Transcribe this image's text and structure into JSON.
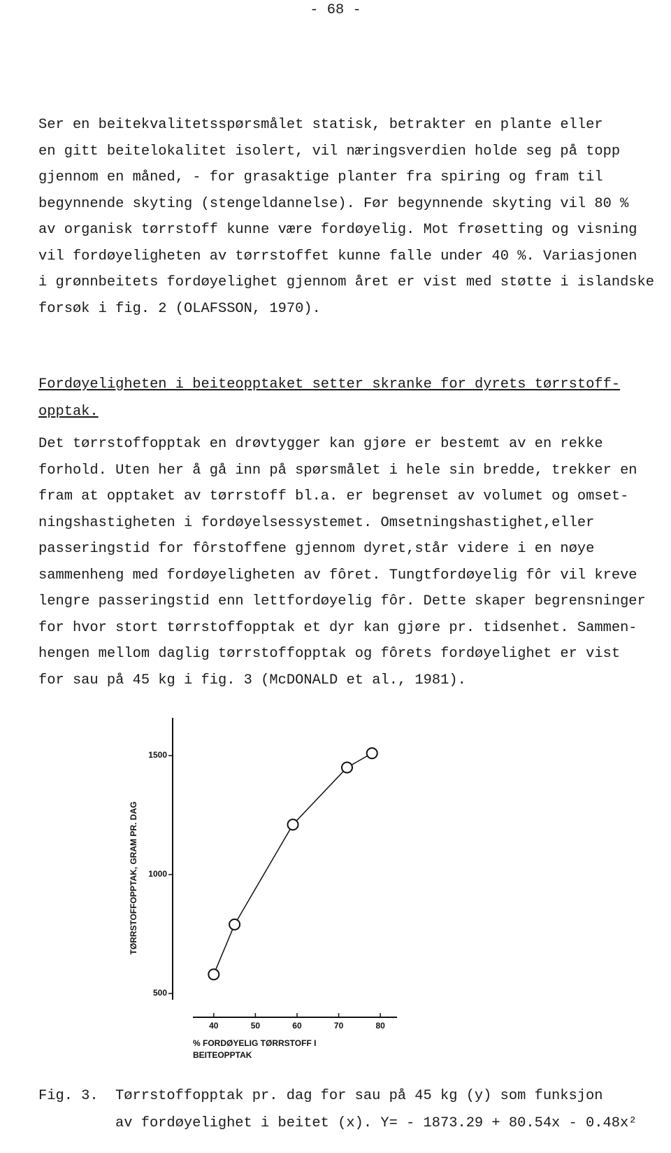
{
  "header": {
    "page_number": "- 68 -"
  },
  "paragraph_1": [
    "Ser en beitekvalitetsspørsmålet statisk, betrakter en plante eller",
    "en gitt beitelokalitet isolert, vil næringsverdien holde seg på topp",
    "gjennom en måned, - for grasaktige planter fra spiring og fram til",
    "begynnende skyting (stengeldannelse). Før begynnende skyting vil 80 %",
    "av organisk tørrstoff kunne være fordøyelig. Mot frøsetting og visning",
    "vil fordøyeligheten av tørrstoffet kunne falle under 40 %. Variasjonen",
    "i grønnbeitets fordøyelighet gjennom året er vist med støtte i islandske",
    "forsøk i fig. 2 (OLAFSSON, 1970)."
  ],
  "heading": [
    "Fordøyeligheten i beiteopptaket setter skranke for dyrets tørrstoff-",
    "opptak."
  ],
  "paragraph_2": [
    "Det tørrstoffopptak en drøvtygger kan gjøre er bestemt av en rekke",
    "forhold. Uten her å gå inn på spørsmålet i hele sin bredde, trekker en",
    "fram at opptaket av tørrstoff bl.a. er begrenset av volumet og omset-",
    "ningshastigheten i fordøyelsessystemet. Omsetningshastighet,eller",
    "passeringstid for fôrstoffene gjennom dyret,står videre i en nøye",
    "sammenheng med fordøyeligheten av fôret. Tungtfordøyelig fôr vil kreve",
    "lengre passeringstid enn lettfordøyelig fôr. Dette skaper begrensninger",
    "for hvor stort tørrstoffopptak et dyr kan gjøre pr. tidsenhet. Sammen-",
    "hengen mellom daglig tørrstoffopptak og fôrets fordøyelighet er vist",
    "for sau på 45 kg i fig. 3 (McDONALD et al., 1981)."
  ],
  "chart_data": {
    "type": "scatter",
    "y_label": "TØRRSTOFFOPPTAK, GRAM PR. DAG",
    "x_label_lines": [
      "% FORDØYELIG TØRRSTOFF I",
      "BEITEOPPTAK"
    ],
    "x": [
      40,
      45,
      59,
      72,
      78
    ],
    "values": [
      580,
      790,
      1210,
      1450,
      1510
    ],
    "color": "#111111",
    "xlim": [
      35,
      84
    ],
    "ylim": [
      400,
      1600
    ],
    "xticks": [
      40,
      50,
      60,
      70,
      80
    ],
    "yticks": [
      500,
      1000,
      1500
    ]
  },
  "caption": {
    "label": "Fig. 3.",
    "lines": [
      "Tørrstoffopptak pr. dag for sau på 45 kg (y) som funksjon",
      "av fordøyelighet i beitet (x). Y= - 1873.29 + 80.54x - 0.48x²"
    ]
  }
}
